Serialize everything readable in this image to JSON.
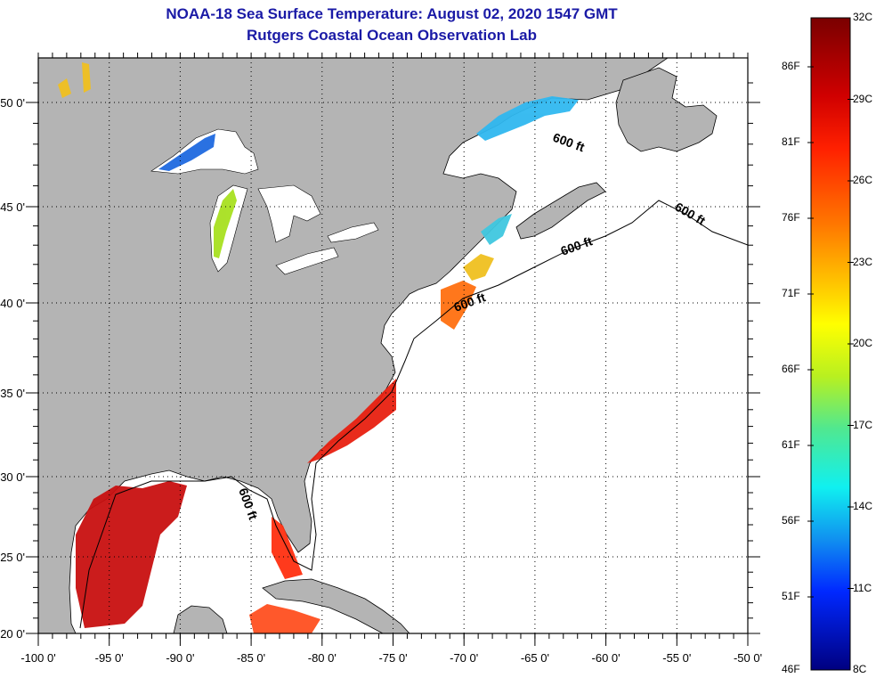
{
  "header": {
    "title": "NOAA-18 Sea Surface Temperature:  August 02, 2020 1547 GMT",
    "subtitle": "Rutgers Coastal Ocean Observation Lab"
  },
  "axes": {
    "x_ticks": [
      {
        "lon": -100,
        "label": "-100 0'"
      },
      {
        "lon": -95,
        "label": "-95 0'"
      },
      {
        "lon": -90,
        "label": "-90 0'"
      },
      {
        "lon": -85,
        "label": "-85 0'"
      },
      {
        "lon": -80,
        "label": "-80 0'"
      },
      {
        "lon": -75,
        "label": "-75 0'"
      },
      {
        "lon": -70,
        "label": "-70 0'"
      },
      {
        "lon": -65,
        "label": "-65 0'"
      },
      {
        "lon": -60,
        "label": "-60 0'"
      },
      {
        "lon": -55,
        "label": "-55 0'"
      },
      {
        "lon": -50,
        "label": "-50 0'"
      }
    ],
    "y_ticks": [
      {
        "lat": 50,
        "label": "50 0'"
      },
      {
        "lat": 45,
        "label": "45 0'"
      },
      {
        "lat": 40,
        "label": "40 0'"
      },
      {
        "lat": 35,
        "label": "35 0'"
      },
      {
        "lat": 30,
        "label": "30 0'"
      },
      {
        "lat": 25,
        "label": "25 0'"
      },
      {
        "lat": 20,
        "label": "20 0'"
      }
    ],
    "lon_range": [
      -100,
      -50
    ],
    "lat_range": [
      20,
      52.3
    ]
  },
  "contour_labels": [
    "600 ft",
    "600 ft",
    "600 ft",
    "600 ft",
    "600 ft"
  ],
  "colorbar": {
    "celsius": [
      "32C",
      "29C",
      "26C",
      "23C",
      "20C",
      "17C",
      "14C",
      "11C",
      "8C"
    ],
    "fahrenheit": [
      "86F",
      "81F",
      "76F",
      "71F",
      "66F",
      "61F",
      "56F",
      "51F",
      "46F"
    ],
    "range_c": [
      8,
      32
    ]
  },
  "colors": {
    "land": "#b4b4b4",
    "ocean": "#ffffff",
    "title": "#1a1aa6"
  }
}
